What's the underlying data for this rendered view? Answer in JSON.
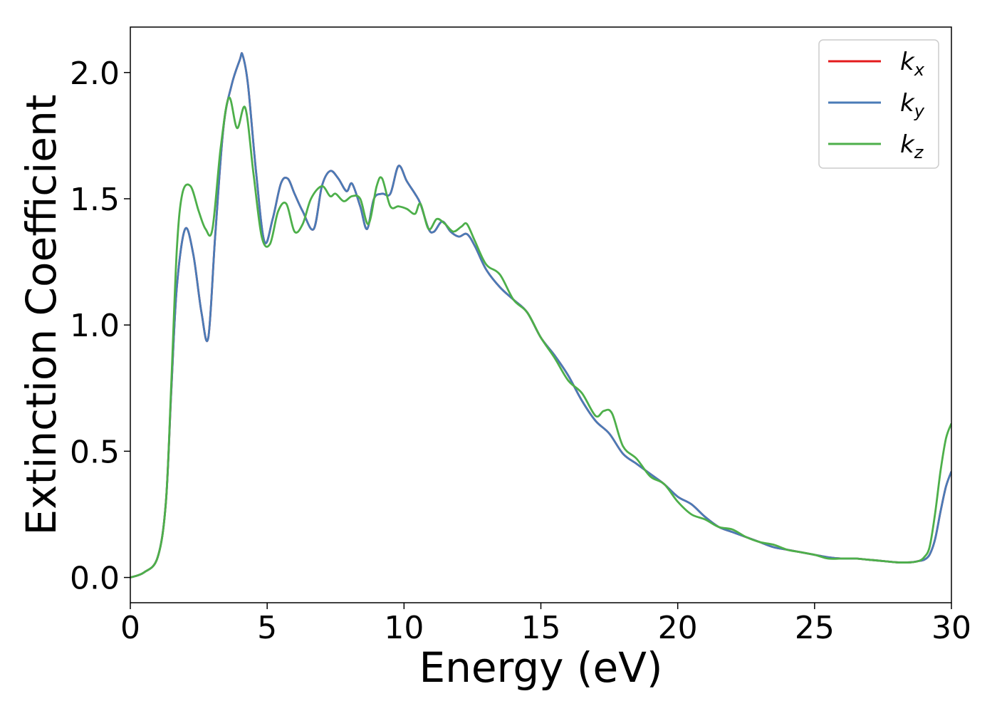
{
  "chart_data": {
    "type": "line",
    "title": "",
    "xlabel": "Energy (eV)",
    "ylabel": "Extinction Coefficient",
    "xlim": [
      0,
      30
    ],
    "ylim": [
      -0.1,
      2.18
    ],
    "grid": false,
    "legend_position": "top-right",
    "xticks": [
      {
        "value": 0,
        "label": "0"
      },
      {
        "value": 5,
        "label": "5"
      },
      {
        "value": 10,
        "label": "10"
      },
      {
        "value": 15,
        "label": "15"
      },
      {
        "value": 20,
        "label": "20"
      },
      {
        "value": 25,
        "label": "25"
      },
      {
        "value": 30,
        "label": "30"
      }
    ],
    "yticks": [
      {
        "value": 0.0,
        "label": "0.0"
      },
      {
        "value": 0.5,
        "label": "0.5"
      },
      {
        "value": 1.0,
        "label": "1.0"
      },
      {
        "value": 1.5,
        "label": "1.5"
      },
      {
        "value": 2.0,
        "label": "2.0"
      }
    ],
    "series": [
      {
        "name": "k",
        "sub": "x",
        "color": "#e41a1c",
        "x": [
          0,
          0.5,
          1.0,
          1.3,
          1.5,
          1.7,
          2.0,
          2.3,
          2.6,
          2.85,
          3.1,
          3.4,
          3.7,
          4.0,
          4.1,
          4.3,
          4.6,
          4.9,
          5.2,
          5.5,
          5.75,
          6.0,
          6.3,
          6.7,
          7.0,
          7.3,
          7.6,
          7.9,
          8.1,
          8.4,
          8.65,
          8.9,
          9.2,
          9.5,
          9.8,
          10.1,
          10.4,
          10.6,
          10.9,
          11.1,
          11.4,
          11.7,
          12.0,
          12.3,
          12.6,
          13.0,
          13.5,
          14.0,
          14.5,
          15.0,
          15.5,
          16.0,
          16.5,
          17.0,
          17.5,
          18.0,
          18.5,
          19.0,
          19.5,
          20.0,
          20.5,
          21.0,
          21.5,
          22.0,
          22.5,
          23.0,
          23.5,
          24.0,
          24.5,
          25.0,
          25.5,
          26.0,
          26.5,
          27.0,
          27.5,
          28.0,
          28.5,
          28.8,
          29.0,
          29.2,
          29.4,
          29.6,
          29.8,
          30.0
        ],
        "y": [
          0.0,
          0.02,
          0.08,
          0.3,
          0.75,
          1.15,
          1.38,
          1.28,
          1.05,
          0.95,
          1.35,
          1.78,
          1.95,
          2.05,
          2.07,
          1.95,
          1.6,
          1.33,
          1.42,
          1.56,
          1.58,
          1.52,
          1.45,
          1.38,
          1.55,
          1.61,
          1.58,
          1.53,
          1.56,
          1.47,
          1.38,
          1.5,
          1.52,
          1.52,
          1.63,
          1.57,
          1.52,
          1.48,
          1.38,
          1.37,
          1.41,
          1.37,
          1.35,
          1.36,
          1.31,
          1.22,
          1.15,
          1.1,
          1.05,
          0.95,
          0.88,
          0.8,
          0.7,
          0.62,
          0.57,
          0.49,
          0.45,
          0.41,
          0.37,
          0.32,
          0.29,
          0.24,
          0.2,
          0.18,
          0.16,
          0.14,
          0.12,
          0.11,
          0.1,
          0.09,
          0.08,
          0.075,
          0.075,
          0.07,
          0.065,
          0.06,
          0.06,
          0.065,
          0.07,
          0.09,
          0.15,
          0.26,
          0.36,
          0.42
        ]
      },
      {
        "name": "k",
        "sub": "y",
        "color": "#4a7bb7",
        "x": [
          0,
          0.5,
          1.0,
          1.3,
          1.5,
          1.7,
          2.0,
          2.3,
          2.6,
          2.85,
          3.1,
          3.4,
          3.7,
          4.0,
          4.1,
          4.3,
          4.6,
          4.9,
          5.2,
          5.5,
          5.75,
          6.0,
          6.3,
          6.7,
          7.0,
          7.3,
          7.6,
          7.9,
          8.1,
          8.4,
          8.65,
          8.9,
          9.2,
          9.5,
          9.8,
          10.1,
          10.4,
          10.6,
          10.9,
          11.1,
          11.4,
          11.7,
          12.0,
          12.3,
          12.6,
          13.0,
          13.5,
          14.0,
          14.5,
          15.0,
          15.5,
          16.0,
          16.5,
          17.0,
          17.5,
          18.0,
          18.5,
          19.0,
          19.5,
          20.0,
          20.5,
          21.0,
          21.5,
          22.0,
          22.5,
          23.0,
          23.5,
          24.0,
          24.5,
          25.0,
          25.5,
          26.0,
          26.5,
          27.0,
          27.5,
          28.0,
          28.5,
          28.8,
          29.0,
          29.2,
          29.4,
          29.6,
          29.8,
          30.0
        ],
        "y": [
          0.0,
          0.02,
          0.08,
          0.3,
          0.75,
          1.15,
          1.38,
          1.28,
          1.05,
          0.95,
          1.35,
          1.78,
          1.95,
          2.05,
          2.07,
          1.95,
          1.6,
          1.33,
          1.42,
          1.56,
          1.58,
          1.52,
          1.45,
          1.38,
          1.55,
          1.61,
          1.58,
          1.53,
          1.56,
          1.47,
          1.38,
          1.5,
          1.52,
          1.52,
          1.63,
          1.57,
          1.52,
          1.48,
          1.38,
          1.37,
          1.41,
          1.37,
          1.35,
          1.36,
          1.31,
          1.22,
          1.15,
          1.1,
          1.05,
          0.95,
          0.88,
          0.8,
          0.7,
          0.62,
          0.57,
          0.49,
          0.45,
          0.41,
          0.37,
          0.32,
          0.29,
          0.24,
          0.2,
          0.18,
          0.16,
          0.14,
          0.12,
          0.11,
          0.1,
          0.09,
          0.08,
          0.075,
          0.075,
          0.07,
          0.065,
          0.06,
          0.06,
          0.065,
          0.07,
          0.09,
          0.15,
          0.26,
          0.36,
          0.42
        ]
      },
      {
        "name": "k",
        "sub": "z",
        "color": "#4daf4a",
        "x": [
          0,
          0.5,
          1.0,
          1.3,
          1.5,
          1.7,
          1.9,
          2.2,
          2.5,
          2.75,
          3.0,
          3.3,
          3.6,
          3.9,
          4.2,
          4.5,
          4.8,
          5.1,
          5.4,
          5.7,
          6.0,
          6.3,
          6.6,
          7.0,
          7.3,
          7.5,
          7.8,
          8.1,
          8.4,
          8.7,
          9.0,
          9.2,
          9.5,
          9.8,
          10.1,
          10.4,
          10.6,
          10.9,
          11.2,
          11.5,
          11.8,
          12.1,
          12.3,
          12.6,
          13.0,
          13.5,
          14.0,
          14.5,
          15.0,
          15.5,
          16.0,
          16.5,
          17.0,
          17.3,
          17.6,
          18.0,
          18.5,
          19.0,
          19.5,
          20.0,
          20.5,
          21.0,
          21.5,
          22.0,
          22.5,
          23.0,
          23.5,
          24.0,
          24.5,
          25.0,
          25.5,
          26.0,
          26.5,
          27.0,
          27.5,
          28.0,
          28.5,
          28.8,
          29.0,
          29.2,
          29.4,
          29.6,
          29.8,
          30.0
        ],
        "y": [
          0.0,
          0.02,
          0.08,
          0.3,
          0.78,
          1.3,
          1.52,
          1.55,
          1.45,
          1.38,
          1.38,
          1.7,
          1.9,
          1.78,
          1.86,
          1.6,
          1.35,
          1.32,
          1.45,
          1.48,
          1.37,
          1.4,
          1.5,
          1.55,
          1.51,
          1.52,
          1.49,
          1.51,
          1.5,
          1.4,
          1.55,
          1.58,
          1.47,
          1.47,
          1.46,
          1.44,
          1.48,
          1.38,
          1.42,
          1.4,
          1.37,
          1.39,
          1.4,
          1.33,
          1.24,
          1.2,
          1.1,
          1.05,
          0.95,
          0.87,
          0.78,
          0.73,
          0.64,
          0.66,
          0.65,
          0.52,
          0.47,
          0.4,
          0.37,
          0.3,
          0.25,
          0.23,
          0.2,
          0.19,
          0.16,
          0.14,
          0.13,
          0.11,
          0.1,
          0.09,
          0.075,
          0.075,
          0.075,
          0.07,
          0.065,
          0.06,
          0.06,
          0.065,
          0.08,
          0.12,
          0.25,
          0.42,
          0.55,
          0.61
        ]
      }
    ]
  }
}
